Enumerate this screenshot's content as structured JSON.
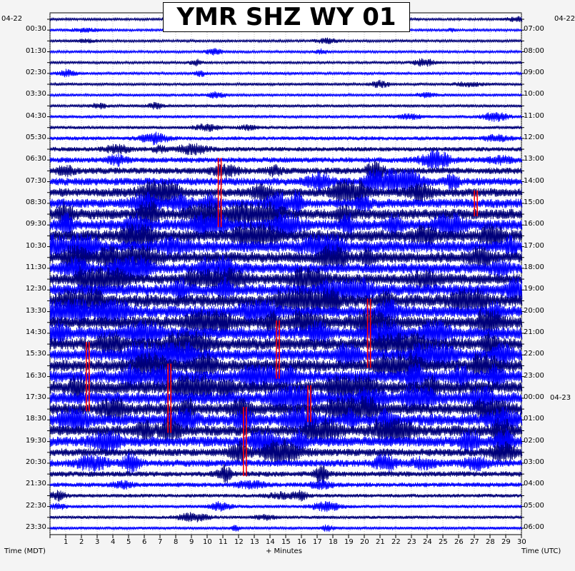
{
  "chart_data": {
    "type": "line",
    "title": "YMR SHZ WY 01",
    "xlabel": "+ Minutes",
    "left_axis_label": "Time (MDT)",
    "right_axis_label": "Time (UTC)",
    "left_date_start": "04-22",
    "right_date_start": "04-22",
    "right_date_next": "04-23",
    "xlim": [
      0,
      30
    ],
    "x_ticks": [
      "1",
      "2",
      "3",
      "4",
      "5",
      "6",
      "7",
      "8",
      "9",
      "10",
      "11",
      "12",
      "13",
      "14",
      "15",
      "16",
      "17",
      "18",
      "19",
      "20",
      "21",
      "22",
      "23",
      "24",
      "25",
      "26",
      "27",
      "28",
      "29",
      "30"
    ],
    "left_ticks": [
      "00:30",
      "01:30",
      "02:30",
      "03:30",
      "04:30",
      "05:30",
      "06:30",
      "07:30",
      "08:30",
      "09:30",
      "10:30",
      "11:30",
      "12:30",
      "13:30",
      "14:30",
      "15:30",
      "16:30",
      "17:30",
      "18:30",
      "19:30",
      "20:30",
      "21:30",
      "22:30",
      "23:30"
    ],
    "right_ticks": [
      "07:00",
      "08:00",
      "09:00",
      "10:00",
      "11:00",
      "12:00",
      "13:00",
      "14:00",
      "15:00",
      "16:00",
      "17:00",
      "18:00",
      "19:00",
      "20:00",
      "21:00",
      "22:00",
      "23:00",
      "00:00",
      "01:00",
      "02:00",
      "03:00",
      "04:00",
      "05:00",
      "06:00"
    ],
    "trace_count": 48,
    "trace_colors": [
      "#00007a",
      "#0000ff"
    ],
    "clip_color": "#ff0000",
    "grid": "dotted",
    "trace_activity": [
      0.08,
      0.08,
      0.09,
      0.09,
      0.1,
      0.1,
      0.11,
      0.11,
      0.12,
      0.13,
      0.14,
      0.2,
      0.25,
      0.32,
      0.4,
      0.5,
      0.58,
      0.62,
      0.72,
      0.75,
      0.78,
      0.8,
      0.75,
      0.7,
      0.72,
      0.8,
      0.85,
      0.8,
      0.82,
      0.85,
      0.82,
      0.8,
      0.82,
      0.85,
      0.88,
      0.85,
      0.8,
      0.82,
      0.72,
      0.7,
      0.5,
      0.45,
      0.32,
      0.25,
      0.18,
      0.15,
      0.14,
      0.12
    ],
    "clipped_segments": [
      {
        "trace": 13,
        "minute": 10.8,
        "span": 7
      },
      {
        "trace": 16,
        "minute": 27.1,
        "span": 3
      },
      {
        "trace": 26,
        "minute": 20.3,
        "span": 7
      },
      {
        "trace": 28,
        "minute": 14.5,
        "span": 6
      },
      {
        "trace": 30,
        "minute": 2.4,
        "span": 7
      },
      {
        "trace": 32,
        "minute": 7.6,
        "span": 7
      },
      {
        "trace": 34,
        "minute": 16.5,
        "span": 4
      },
      {
        "trace": 36,
        "minute": 12.4,
        "span": 7
      }
    ]
  }
}
